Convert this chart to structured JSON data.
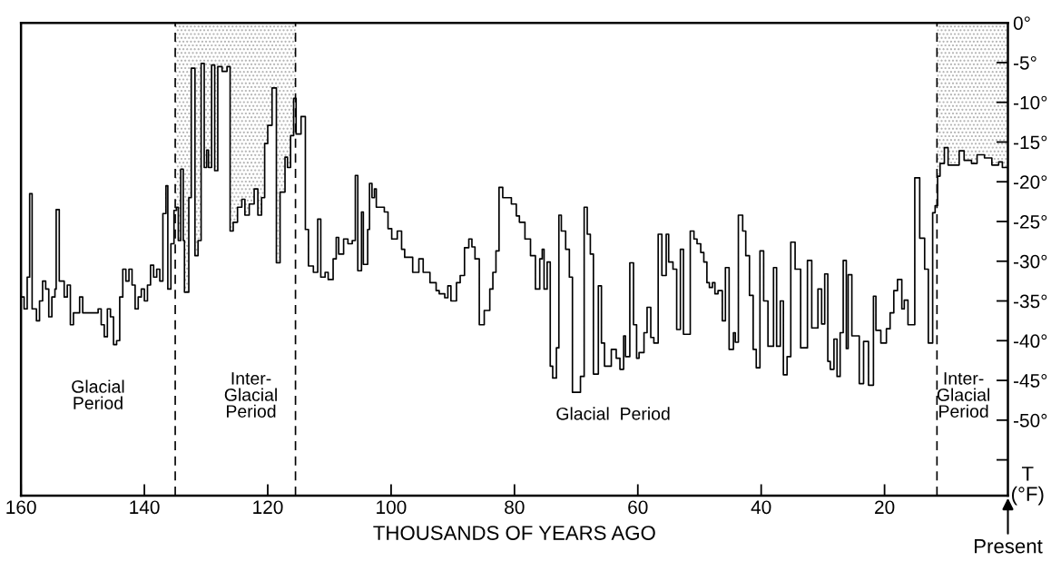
{
  "chart_data": {
    "type": "step",
    "xlabel": "THOUSANDS OF YEARS AGO",
    "ylabel": "T\n(°F)",
    "xlim": [
      160,
      0
    ],
    "xticks": [
      160,
      140,
      120,
      100,
      80,
      60,
      40,
      20
    ],
    "ylim": [
      -59.5,
      0
    ],
    "yticks": [
      {
        "value": 0,
        "label": "0°"
      },
      {
        "value": -5,
        "label": "-5°"
      },
      {
        "value": -10,
        "label": "-10°"
      },
      {
        "value": -15,
        "label": "-15°"
      },
      {
        "value": -20,
        "label": "-20°"
      },
      {
        "value": -25,
        "label": "-25°"
      },
      {
        "value": -30,
        "label": "-30°"
      },
      {
        "value": -35,
        "label": "-35°"
      },
      {
        "value": -40,
        "label": "-40°"
      },
      {
        "value": -45,
        "label": "-45°"
      },
      {
        "value": -50,
        "label": "-50°"
      },
      {
        "value": -55,
        "label": null
      }
    ],
    "grid": false,
    "legend": false,
    "line_style": "solid",
    "series": [
      {
        "color": "#000000",
        "x": [
          160,
          159.5,
          159,
          158.6,
          158.2,
          157.5,
          157,
          156.5,
          156,
          155.5,
          155,
          154.5,
          154.3,
          153.8,
          153,
          152.5,
          152,
          151.5,
          150.5,
          150,
          147.5,
          147,
          146.5,
          146,
          145.5,
          145,
          144.5,
          144,
          143.5,
          143,
          142.5,
          142,
          141.5,
          141,
          140.5,
          140,
          139.5,
          139,
          138.5,
          138,
          137.5,
          137,
          136.5,
          136.2,
          135.7,
          135.2,
          134.8,
          134.5,
          134.1,
          133.7,
          133.5,
          132.8,
          132.4,
          131.8,
          131.3,
          130.8,
          130.3,
          129.9,
          129.6,
          129.1,
          128.6,
          128.1,
          127.4,
          126.6,
          126.1,
          125.6,
          124.9,
          124.2,
          123.7,
          123,
          122.2,
          121.6,
          121,
          120.5,
          120,
          119.3,
          118.6,
          118,
          117.2,
          116.8,
          116.3,
          115.8,
          115.4,
          114.6,
          113.9,
          113.4,
          112.6,
          111.9,
          111.4,
          110.7,
          110.2,
          109.4,
          108.9,
          108.5,
          107.7,
          107,
          106.3,
          105.8,
          105.4,
          104.8,
          104.5,
          103.8,
          103.5,
          103.1,
          102.7,
          102.4,
          101.1,
          100.5,
          99.9,
          99,
          98.3,
          97.8,
          96.5,
          95.5,
          94.8,
          93.7,
          92.7,
          92.2,
          91.3,
          90.8,
          90.3,
          89.4,
          88.8,
          88.1,
          87.4,
          86.9,
          86.4,
          85.7,
          84.9,
          84,
          83.5,
          83,
          82.5,
          81.9,
          81.3,
          80.5,
          79.7,
          79.2,
          78.3,
          77.4,
          76.6,
          75.9,
          75.5,
          75.2,
          74.7,
          74.2,
          73.8,
          73.2,
          72.8,
          72.4,
          71.7,
          71.1,
          70.6,
          69.3,
          68.7,
          68.2,
          67.7,
          67.2,
          66.4,
          65.9,
          65.4,
          64.3,
          63.5,
          62.9,
          62.3,
          62,
          61.3,
          60.7,
          60.2,
          59.8,
          59,
          58.5,
          57.9,
          57.4,
          56.7,
          56.1,
          55.4,
          55,
          54.3,
          53.7,
          53.1,
          52.6,
          51.5,
          50.9,
          50.4,
          49.8,
          49.3,
          48.8,
          48.4,
          47.9,
          47.5,
          47,
          46.3,
          45.8,
          45.2,
          44.5,
          44.2,
          43.7,
          43,
          42.5,
          41.9,
          41.3,
          40.8,
          40.2,
          39.6,
          38.9,
          38,
          37.5,
          36.9,
          36.4,
          35.8,
          35.2,
          34.5,
          33.6,
          32.5,
          31.8,
          30.8,
          30.2,
          29.7,
          29.2,
          28.8,
          28.2,
          27.7,
          27.2,
          26.7,
          26.2,
          25.9,
          25.3,
          24.1,
          23.4,
          22.6,
          21.8,
          21.4,
          20.6,
          19.7,
          19.1,
          18.5,
          17.9,
          17.2,
          16.8,
          16.2,
          15.1,
          14.3,
          13.5,
          12.9,
          12.2,
          11.8,
          11.4,
          11,
          10.3,
          9.7,
          7.9,
          7.1,
          5.9,
          5,
          3.8,
          2.6,
          1.5,
          0.9,
          0
        ],
        "values": [
          -34.5,
          -36,
          -32,
          -21.5,
          -36,
          -37.5,
          -35,
          -32.5,
          -33.5,
          -37,
          -34.5,
          -33.5,
          -23.5,
          -32.5,
          -34.5,
          -33,
          -38,
          -36.5,
          -34.5,
          -36.5,
          -36,
          -38,
          -39.5,
          -36,
          -37,
          -40.5,
          -40,
          -34.5,
          -31,
          -32.5,
          -31,
          -33,
          -36,
          -34.5,
          -33.5,
          -35,
          -33,
          -30.5,
          -32,
          -31,
          -32.5,
          -24,
          -20.5,
          -33.5,
          -27.8,
          -23.6,
          -23.2,
          -27.4,
          -18.4,
          -27.4,
          -33.9,
          -22,
          -5.7,
          -29.3,
          -27.4,
          -5.1,
          -18.2,
          -16,
          -18.2,
          -5.3,
          -18.6,
          -5.5,
          -6.1,
          -5.5,
          -26.2,
          -25.1,
          -23.2,
          -22.2,
          -24.2,
          -22.8,
          -20.9,
          -24.2,
          -22,
          -15.2,
          -12.9,
          -8.2,
          -30.2,
          -21.3,
          -16.9,
          -18.2,
          -14.2,
          -9.5,
          -14,
          -11.8,
          -26,
          -30.6,
          -31.4,
          -24.7,
          -32,
          -31.4,
          -32.3,
          -29.7,
          -27,
          -29.1,
          -27.2,
          -27.8,
          -27.4,
          -19.2,
          -31.2,
          -23.8,
          -30.4,
          -26,
          -20.2,
          -22,
          -20.9,
          -23.2,
          -23.8,
          -25.9,
          -27.2,
          -26.2,
          -28.5,
          -29.5,
          -31.4,
          -29.7,
          -31.4,
          -32.7,
          -33.7,
          -34.1,
          -34.6,
          -33.1,
          -35,
          -32.7,
          -31.8,
          -28.3,
          -27.2,
          -28.2,
          -29.7,
          -38,
          -36.2,
          -33.5,
          -31.4,
          -28.7,
          -20.7,
          -22,
          -22,
          -22.8,
          -24.3,
          -25.1,
          -27.2,
          -29.3,
          -33.5,
          -29.7,
          -28.5,
          -33.5,
          -30.1,
          -43.2,
          -44.7,
          -40.9,
          -24.2,
          -26.2,
          -28.5,
          -32,
          -46.5,
          -44.5,
          -23.2,
          -26.6,
          -29.1,
          -44.2,
          -33.1,
          -40.3,
          -43.2,
          -41.1,
          -42.2,
          -43.6,
          -39.4,
          -42,
          -30.2,
          -38,
          -42.2,
          -41.5,
          -39,
          -35.8,
          -39.6,
          -40.3,
          -26.6,
          -31.8,
          -26.6,
          -30.1,
          -31,
          -38.6,
          -28.5,
          -39.2,
          -26.2,
          -27.2,
          -27.8,
          -28.9,
          -30.1,
          -32.7,
          -33.3,
          -32.7,
          -34.1,
          -33.7,
          -37.5,
          -30.8,
          -41.1,
          -39,
          -40.2,
          -24.2,
          -26.2,
          -29.3,
          -34.3,
          -41.1,
          -43.4,
          -28.7,
          -35,
          -40.7,
          -30.8,
          -40.7,
          -35,
          -44.3,
          -42,
          -27.6,
          -31,
          -40.9,
          -29.9,
          -38.4,
          -33.5,
          -37.9,
          -31.6,
          -42.6,
          -43.6,
          -39.8,
          -44.5,
          -39,
          -29.9,
          -41,
          -31.7,
          -39.4,
          -45.4,
          -40.1,
          -45.6,
          -34.4,
          -38.7,
          -40.3,
          -38.5,
          -36.5,
          -33.7,
          -32.3,
          -36,
          -34.9,
          -38,
          -19.5,
          -27.1,
          -31,
          -40.3,
          -23.9,
          -23,
          -19.3,
          -17.7,
          -15.7,
          -17.9,
          -16.1,
          -17.3,
          -17.7,
          -16.6,
          -17,
          -17.9,
          -17.5,
          -18.2,
          -18.2
        ]
      },
      {
        "type": "area",
        "color": "#b0b0b0",
        "x": [
          135,
          134.8,
          134.5,
          134.1,
          133.7,
          133.5,
          132.8,
          132.4,
          131.8,
          131.3,
          130.8,
          130.3,
          129.9,
          129.6,
          129.1,
          128.6,
          128.1,
          127.4,
          126.6,
          126.1,
          125.6,
          124.9,
          124.2,
          123.7,
          123,
          122.2,
          121.6,
          121,
          120.5,
          120,
          119.3,
          118.6,
          118,
          117.2,
          116.8,
          116.3,
          115.8,
          115.5
        ],
        "values": [
          -23.6,
          -23.2,
          -27.4,
          -18.4,
          -27.4,
          -33.9,
          -22,
          -5.7,
          -29.3,
          -27.4,
          -5.1,
          -18.2,
          -16,
          -18.2,
          -5.3,
          -18.6,
          -5.5,
          -6.1,
          -5.5,
          -26.2,
          -25.1,
          -23.2,
          -22.2,
          -24.2,
          -22.8,
          -20.9,
          -24.2,
          -22,
          -15.2,
          -12.9,
          -8.2,
          -30.2,
          -21.3,
          -16.9,
          -18.2,
          -14.2,
          -9.5,
          -9.5
        ]
      },
      {
        "type": "area",
        "color": "#b0b0b0",
        "x": [
          11.5,
          11.4,
          11,
          10.3,
          9.7,
          7.9,
          7.1,
          5.9,
          5,
          3.8,
          2.6,
          1.5,
          0.9,
          0
        ],
        "values": [
          -23,
          -19.3,
          -17.7,
          -15.7,
          -17.9,
          -16.1,
          -17.3,
          -17.7,
          -16.6,
          -17,
          -17.9,
          -17.5,
          -18.2,
          -18.2
        ]
      }
    ],
    "annotations": [
      "Glacial\nPeriod",
      "Inter-\nGlacial\nPeriod",
      "Glacial  Period",
      "Inter-\nGlacial\nPeriod",
      "Present"
    ],
    "ref_lines": [
      {
        "axis": "x",
        "value": 135,
        "line_style": "dashed"
      },
      {
        "axis": "x",
        "value": 115.5,
        "line_style": "dashed"
      },
      {
        "axis": "x",
        "value": 11.5,
        "line_style": "dashed"
      }
    ]
  }
}
